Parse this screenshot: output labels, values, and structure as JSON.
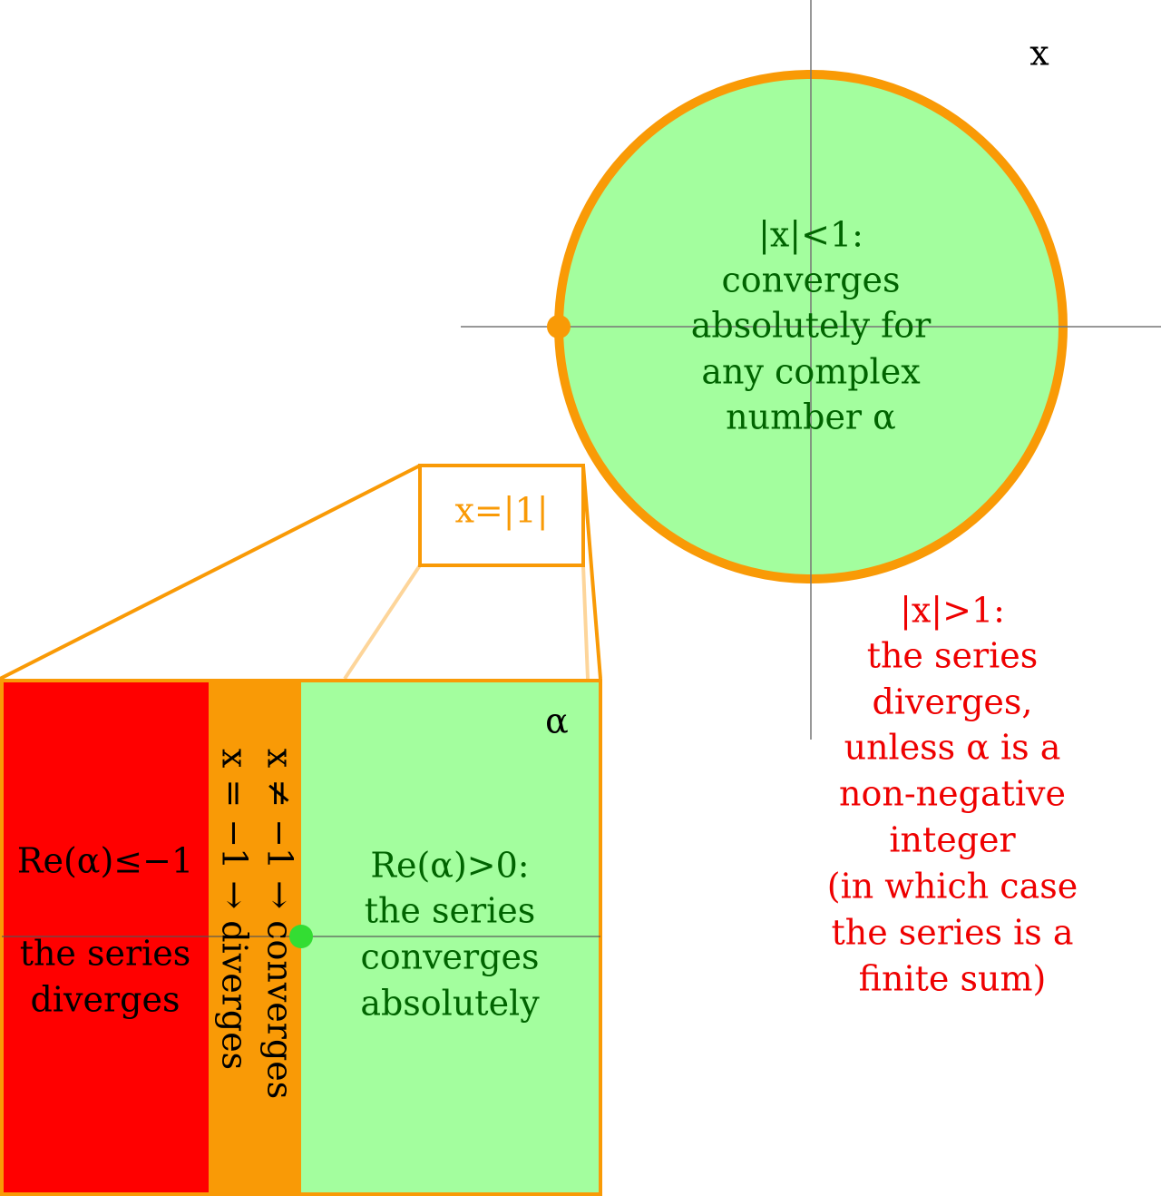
{
  "x_axis_label": "x",
  "inner_region": {
    "lines": [
      "|x|<1:",
      "converges",
      "absolutely for",
      "any complex",
      "number α"
    ]
  },
  "outer_region": {
    "lines": [
      "|x|>1:",
      "the series",
      "diverges,",
      "unless α is a",
      "non-negative",
      "integer",
      "(in which case",
      "the series is a",
      "finite sum)"
    ]
  },
  "zoom_label": "x=|1|",
  "alpha_axis_label": "α",
  "left_region": {
    "lines": [
      "Re(α)≤−1",
      "the series",
      "diverges"
    ]
  },
  "middle_region": {
    "lines": [
      "x ≠ −1 → converges",
      "x = −1 → diverges"
    ]
  },
  "right_region": {
    "lines": [
      "Re(α)>0:",
      "the series",
      "converges",
      "absolutely"
    ]
  }
}
